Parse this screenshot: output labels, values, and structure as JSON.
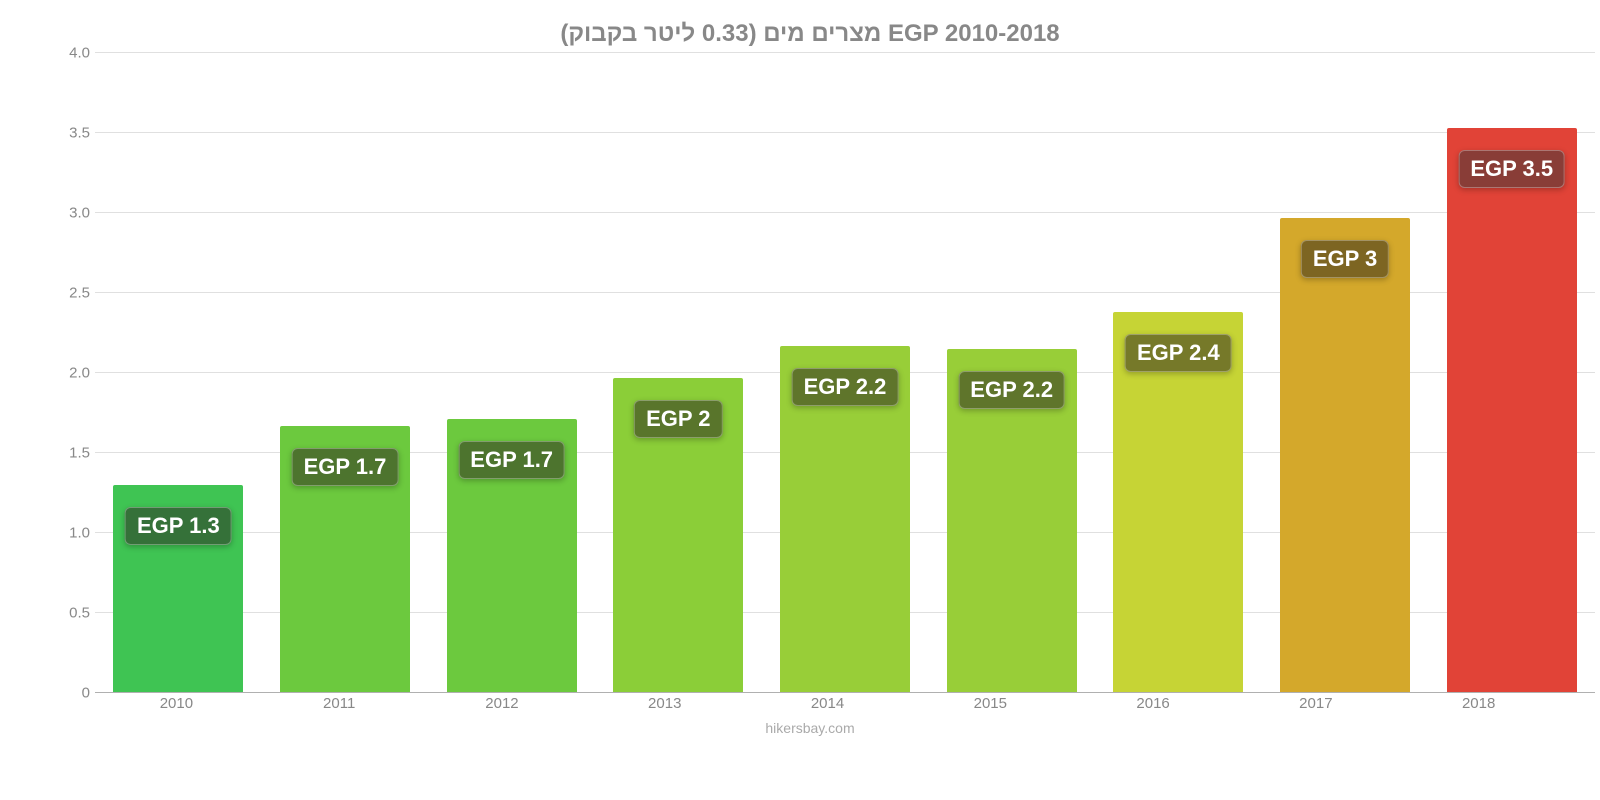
{
  "chart": {
    "type": "bar",
    "title": "מצרים מים (0.33 ליטר בקבוק) EGP 2010-2018",
    "subtitle": "",
    "attribution": "hikersbay.com",
    "background_color": "#ffffff",
    "grid_color": "#e0e0e0",
    "text_color": "#888888",
    "title_fontsize": 24,
    "label_fontsize": 15,
    "barlabel_fontsize": 22,
    "ylim": [
      0,
      4.0
    ],
    "yticks": [
      "0",
      "0.5",
      "1.0",
      "1.5",
      "2.0",
      "2.5",
      "3.0",
      "3.5",
      "4.0"
    ],
    "ytick_values": [
      0,
      0.5,
      1.0,
      1.5,
      2.0,
      2.5,
      3.0,
      3.5,
      4.0
    ],
    "categories": [
      "2010",
      "2011",
      "2012",
      "2013",
      "2014",
      "2015",
      "2016",
      "2017",
      "2018"
    ],
    "values": [
      1.3,
      1.67,
      1.71,
      1.97,
      2.17,
      2.15,
      2.38,
      2.97,
      3.53
    ],
    "bar_labels": [
      "EGP 1.3",
      "EGP 1.7",
      "EGP 1.7",
      "EGP 2",
      "EGP 2.2",
      "EGP 2.2",
      "EGP 2.4",
      "EGP 3",
      "EGP 3.5"
    ],
    "bar_colors": [
      "#3fc453",
      "#6cc93e",
      "#6cc93e",
      "#8bce38",
      "#98ce38",
      "#98ce38",
      "#c6d435",
      "#d4a82b",
      "#e14337"
    ],
    "bar_label_bg": [
      "rgba(50,90,50,0.78)",
      "rgba(68,92,42,0.78)",
      "rgba(68,92,42,0.78)",
      "rgba(75,92,40,0.78)",
      "rgba(80,92,40,0.78)",
      "rgba(80,92,40,0.78)",
      "rgba(95,95,38,0.78)",
      "rgba(100,82,32,0.78)",
      "rgba(112,60,55,0.78)"
    ],
    "bar_width": 0.78,
    "label_offset_below_top": 60
  }
}
